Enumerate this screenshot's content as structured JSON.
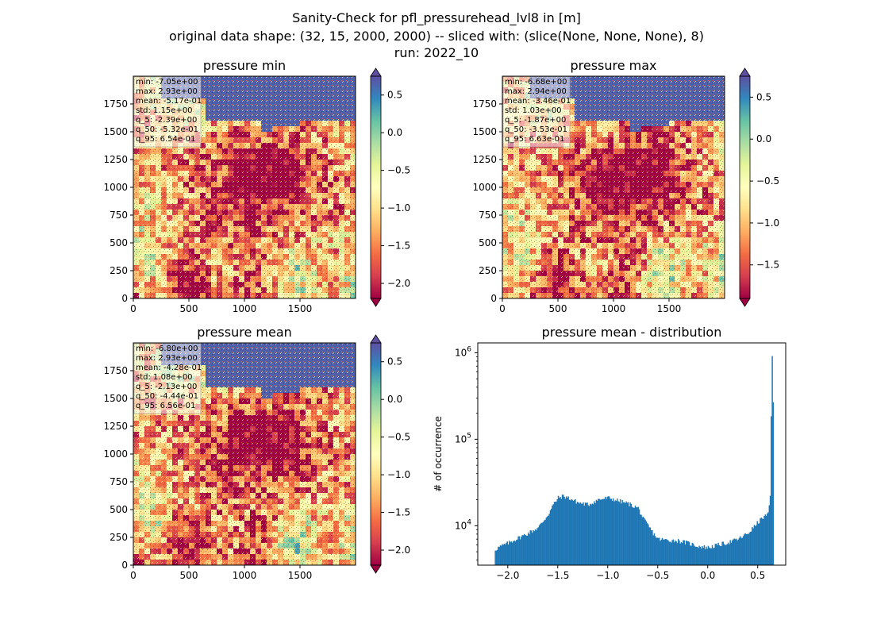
{
  "suptitle": {
    "line1": "Sanity-Check for pfl_pressurehead_lvl8 in [m]",
    "line2": "original data shape: (32, 15, 2000, 2000) -- sliced with: (slice(None, None, None), 8)",
    "line3": "run: 2022_10"
  },
  "chart_data": [
    {
      "type": "heatmap",
      "title": "pressure min",
      "xticks": [
        0,
        500,
        1000,
        1500
      ],
      "yticks": [
        0,
        250,
        500,
        750,
        1000,
        1250,
        1500,
        1750
      ],
      "xlim": [
        0,
        2000
      ],
      "ylim": [
        0,
        2000
      ],
      "colorbar": {
        "cmap": "Spectral",
        "range": [
          -2.2,
          0.75
        ],
        "ticks": [
          0.5,
          0.0,
          -0.5,
          -1.0,
          -1.5,
          -2.0
        ],
        "tick_labels": [
          "0.5",
          "0.0",
          "−0.5",
          "−1.0",
          "−1.5",
          "−2.0"
        ]
      },
      "stats": [
        "min: -7.05e+00",
        "max: 2.93e+00",
        "mean: -5.17e-01",
        "std: 1.15e+00",
        "q_5: -2.39e+00",
        "q_50: -5.32e-01",
        "q_95: 6.54e-01"
      ]
    },
    {
      "type": "heatmap",
      "title": "pressure max",
      "xticks": [
        0,
        500,
        1000,
        1500
      ],
      "yticks": [
        0,
        250,
        500,
        750,
        1000,
        1250,
        1500,
        1750
      ],
      "xlim": [
        0,
        2000
      ],
      "ylim": [
        0,
        2000
      ],
      "colorbar": {
        "cmap": "Spectral",
        "range": [
          -1.9,
          0.75
        ],
        "ticks": [
          0.5,
          0.0,
          -0.5,
          -1.0,
          -1.5
        ],
        "tick_labels": [
          "0.5",
          "0.0",
          "−0.5",
          "−1.0",
          "−1.5"
        ]
      },
      "stats": [
        "min: -6.68e+00",
        "max: 2.94e+00",
        "mean: -3.46e-01",
        "std: 1.03e+00",
        "q_5: -1.87e+00",
        "q_50: -3.53e-01",
        "q_95: 6.63e-01"
      ]
    },
    {
      "type": "heatmap",
      "title": "pressure mean",
      "xticks": [
        0,
        500,
        1000,
        1500
      ],
      "yticks": [
        0,
        250,
        500,
        750,
        1000,
        1250,
        1500,
        1750
      ],
      "xlim": [
        0,
        2000
      ],
      "ylim": [
        0,
        2000
      ],
      "colorbar": {
        "cmap": "Spectral",
        "range": [
          -2.2,
          0.75
        ],
        "ticks": [
          0.5,
          0.0,
          -0.5,
          -1.0,
          -1.5,
          -2.0
        ],
        "tick_labels": [
          "0.5",
          "0.0",
          "−0.5",
          "−1.0",
          "−1.5",
          "−2.0"
        ]
      },
      "stats": [
        "min: -6.80e+00",
        "max: 2.93e+00",
        "mean: -4.28e-01",
        "std: 1.08e+00",
        "q_5: -2.13e+00",
        "q_50: -4.44e-01",
        "q_95: 6.56e-01"
      ]
    },
    {
      "type": "bar",
      "title": "pressure mean - distribution",
      "xlabel": "",
      "ylabel": "# of occurrence",
      "yscale": "log",
      "color": "#1f77b4",
      "xlim": [
        -2.3,
        0.78
      ],
      "ylim": [
        3500,
        1300000
      ],
      "xticks": [
        -2.0,
        -1.5,
        -1.0,
        -0.5,
        0.0,
        0.5
      ],
      "xtick_labels": [
        "−2.0",
        "−1.5",
        "−1.0",
        "−0.5",
        "0.0",
        "0.5"
      ],
      "yticks": [
        10000,
        100000,
        1000000
      ],
      "ytick_labels": [
        "10^4",
        "10^5",
        "10^6"
      ],
      "histogram_profile": {
        "x": [
          -2.13,
          -2.1,
          -2.0,
          -1.9,
          -1.8,
          -1.7,
          -1.6,
          -1.55,
          -1.5,
          -1.45,
          -1.4,
          -1.3,
          -1.2,
          -1.1,
          -1.0,
          -0.9,
          -0.8,
          -0.7,
          -0.65,
          -0.6,
          -0.55,
          -0.5,
          -0.4,
          -0.3,
          -0.2,
          -0.1,
          0.0,
          0.1,
          0.2,
          0.3,
          0.4,
          0.5,
          0.55,
          0.6,
          0.62,
          0.63,
          0.64,
          0.65
        ],
        "y": [
          5300,
          5600,
          6300,
          7200,
          8200,
          9500,
          13500,
          17500,
          21000,
          22000,
          21000,
          18500,
          17500,
          20000,
          21000,
          19500,
          18000,
          16000,
          12000,
          10000,
          8200,
          7000,
          6800,
          6700,
          6300,
          5800,
          5600,
          6000,
          6400,
          7000,
          8200,
          11000,
          12500,
          13500,
          22000,
          180000,
          950000,
          280000
        ]
      }
    }
  ]
}
